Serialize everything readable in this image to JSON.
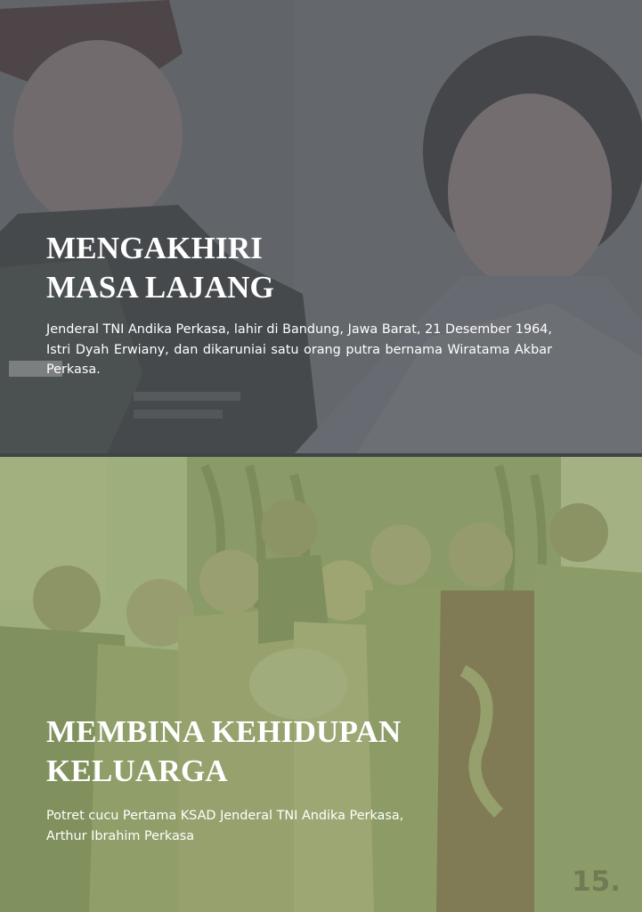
{
  "sections": [
    {
      "heading_line1": "MENGAKHIRI",
      "heading_line2": "MASA LAJANG",
      "body": "Jenderal TNI Andika Perkasa, lahir di Bandung, Jawa Barat, 21 Desember 1964, Istri Dyah Erwiany, dan dikaruniai  satu orang  putra  bernama Wiratama  Akbar Perkasa."
    },
    {
      "heading_line1": "MEMBINA KEHIDUPAN",
      "heading_line2": "KELUARGA",
      "body_line1": "Potret  cucu Pertama KSAD Jenderal TNI Andika Perkasa,",
      "body_line2": "Arthur Ibrahim Perkasa"
    }
  ],
  "page_number": "15.",
  "colors": {
    "top_tint": "#5f6368",
    "bottom_tint": "#98a873",
    "heading_text": "#ffffff",
    "page_number": "#6f7c53"
  }
}
